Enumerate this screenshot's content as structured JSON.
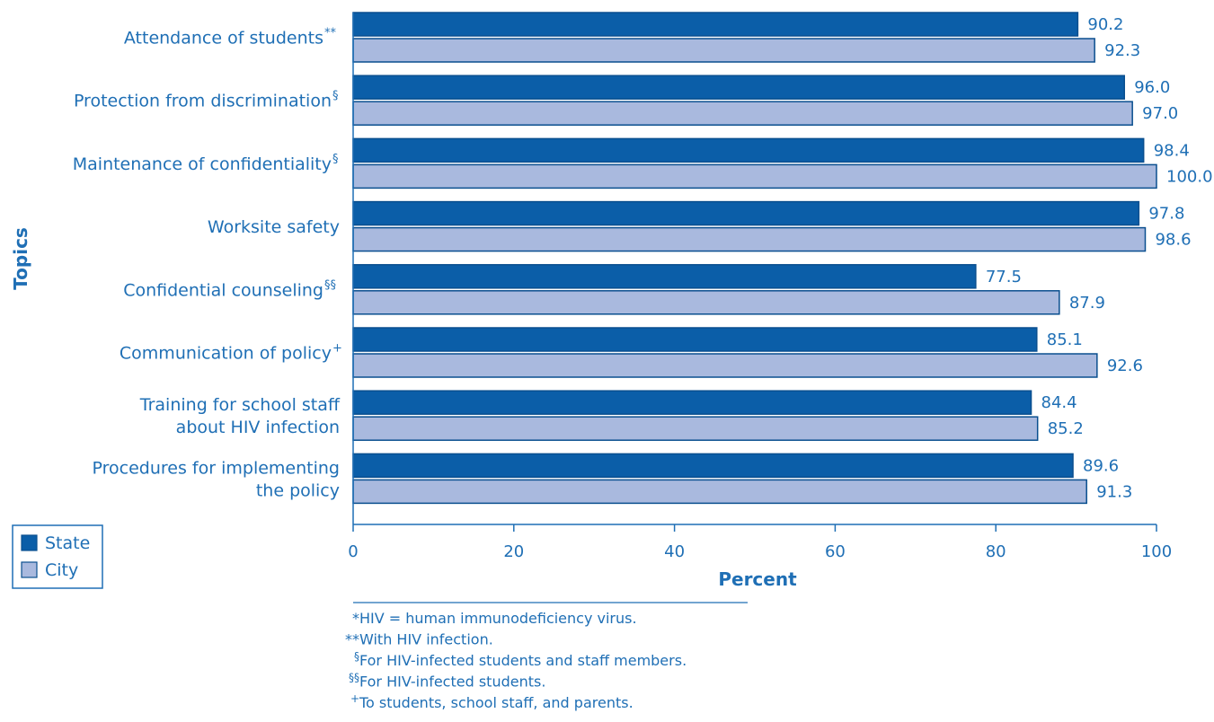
{
  "chart_data": {
    "type": "bar",
    "orientation": "horizontal",
    "categories": [
      {
        "lines": [
          "Attendance of students"
        ],
        "mark": "**"
      },
      {
        "lines": [
          "Protection from discrimination"
        ],
        "mark": "§"
      },
      {
        "lines": [
          "Maintenance of confidentiality"
        ],
        "mark": "§"
      },
      {
        "lines": [
          "Worksite safety"
        ],
        "mark": ""
      },
      {
        "lines": [
          "Confidential counseling"
        ],
        "mark": "§§"
      },
      {
        "lines": [
          "Communication of policy"
        ],
        "mark": "+"
      },
      {
        "lines": [
          "Training for school staff",
          "about HIV infection"
        ],
        "mark": ""
      },
      {
        "lines": [
          "Procedures for implementing",
          "the policy"
        ],
        "mark": ""
      }
    ],
    "series": [
      {
        "name": "State",
        "color": "#0b5ea8",
        "values": [
          90.2,
          96.0,
          98.4,
          97.8,
          77.5,
          85.1,
          84.4,
          89.6
        ]
      },
      {
        "name": "City",
        "color": "#a9b9de",
        "values": [
          92.3,
          97.0,
          100.0,
          98.6,
          87.9,
          92.6,
          85.2,
          91.3
        ]
      }
    ],
    "value_labels": {
      "State": [
        "90.2",
        "96.0",
        "98.4",
        "97.8",
        "77.5",
        "85.1",
        "84.4",
        "89.6"
      ],
      "City": [
        "92.3",
        "97.0",
        "100.0",
        "98.6",
        "87.9",
        "92.6",
        "85.2",
        "91.3"
      ]
    },
    "xlabel": "Percent",
    "ylabel": "Topics",
    "xlim": [
      0,
      100
    ],
    "xticks": [
      "0",
      "20",
      "40",
      "60",
      "80",
      "100"
    ],
    "legend": {
      "position": "bottom-left",
      "entries": [
        "State",
        "City"
      ]
    },
    "grid": false
  },
  "footnotes": [
    {
      "mark": "*",
      "text": " HIV = human immunodeficiency virus."
    },
    {
      "mark": "**",
      "text": " With HIV infection."
    },
    {
      "mark": "§",
      "text": " For HIV-infected students and staff members."
    },
    {
      "mark": "§§",
      "text": " For HIV-infected students."
    },
    {
      "mark": "+",
      "text": " To students, school staff, and parents."
    }
  ],
  "colors": {
    "text": "#1f6fb5",
    "state": "#0b5ea8",
    "city": "#a9b9de",
    "outline": "#0a4f8f"
  }
}
